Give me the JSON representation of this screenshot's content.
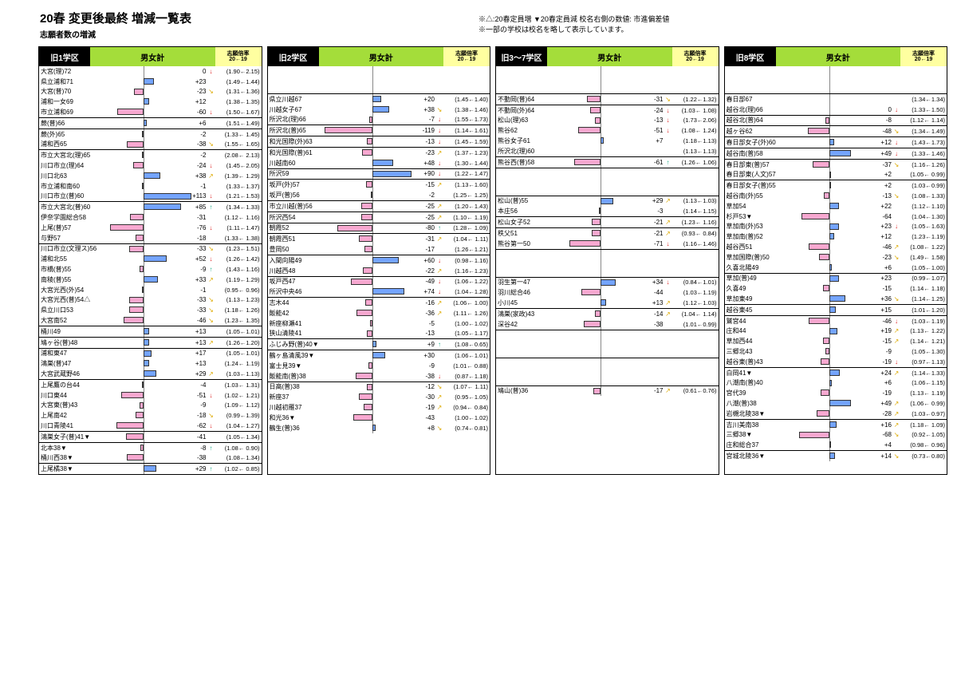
{
  "title": "20春 変更後最終 増減一覧表",
  "subtitle": "志願者数の増減",
  "legend_line1": "※△:20春定員増  ▼20春定員減    校名右側の数値: 市進偏差値",
  "legend_line2": "※一部の学校は校名を略して表示しています。",
  "head": {
    "total": "男女計",
    "ratio": "志願倍率\n20←19"
  },
  "districts": [
    "旧1学区",
    "旧2学区",
    "旧3～7学区",
    "旧8学区"
  ],
  "bar_scale": 0.55,
  "colors": {
    "pos": "#74a4ff",
    "neg": "#f8a8d0",
    "head_black": "#000000",
    "head_green": "#a4dd3a",
    "head_yellow": "#ffffa0"
  },
  "cols": [
    [
      [
        [
          "大宮(理)72",
          0,
          "↓",
          "(1.90←2.15)"
        ],
        [
          "県立浦和71",
          23,
          "",
          "(1.49←1.44)"
        ],
        [
          "大宮(普)70",
          -23,
          "↘",
          "(1.31←1.36)"
        ],
        [
          "浦和一女69",
          12,
          "",
          "(1.38←1.35)"
        ],
        [
          "市立浦和69",
          -60,
          "↓",
          "(1.50←1.67)"
        ]
      ],
      [
        [
          "蕨(普)66",
          6,
          "",
          "(1.51←1.49)"
        ]
      ],
      [
        [
          "蕨(外)65",
          -2,
          "",
          "(1.33← 1.45)"
        ],
        [
          "浦和西65",
          -38,
          "↘",
          "(1.55← 1.65)"
        ]
      ],
      [
        [
          "市立大宮北(理)65",
          -2,
          "",
          "(2.08← 2.13)"
        ],
        [
          "川口市立(理)64",
          -24,
          "↓",
          "(1.45←2.05)"
        ],
        [
          "川口北63",
          38,
          "↗",
          "(1.39← 1.29)"
        ],
        [
          "市立浦和南60",
          -1,
          "",
          "(1.33←1.37)"
        ],
        [
          "川口市立(普)60",
          113,
          "↓",
          "(1.21←1.53)"
        ]
      ],
      [
        [
          "市立大宮北(普)60",
          85,
          "↑",
          "(1.34←1.33)"
        ],
        [
          "伊奈学園総合58",
          -31,
          "",
          "(1.12← 1.16)"
        ],
        [
          "上尾(普)57",
          -76,
          "↓",
          "(1.11←1.47)"
        ],
        [
          "与野57",
          -18,
          "",
          "(1.33← 1.38)"
        ]
      ],
      [
        [
          "川口市立(文理ス)56",
          -33,
          "↘",
          "(1.23←1.51)"
        ],
        [
          "浦和北55",
          52,
          "↓",
          "(1.26←1.42)"
        ],
        [
          "市橋(普)55",
          -9,
          "↑",
          "(1.43←1.16)"
        ],
        [
          "南稜(普)55",
          33,
          "↗",
          "(1.19←1.29)"
        ],
        [
          "大宮光西(外)54",
          -1,
          "",
          "(0.95← 0.96)"
        ],
        [
          "大宮光西(普)54△",
          -33,
          "↘",
          "(1.13←1.23)"
        ],
        [
          "県立川口53",
          -33,
          "↘",
          "(1.18← 1.26)"
        ],
        [
          "大宮南52",
          -46,
          "↘",
          "(1.23← 1.35)"
        ]
      ],
      [
        [
          "桶川49",
          13,
          "",
          "(1.05←1.01)"
        ]
      ],
      [
        [
          "鳩ヶ谷(普)48",
          13,
          "↗",
          "(1.26←1.20)"
        ]
      ],
      [
        [
          "浦和東47",
          17,
          "",
          "(1.05←1.01)"
        ],
        [
          "鴻巣(普)47",
          13,
          "",
          "(1.24← 1.19)"
        ],
        [
          "大宮武蔵野46",
          29,
          "↗",
          "(1.03←1.13)"
        ]
      ],
      [
        [
          "上尾鷹の台44",
          -4,
          "",
          "(1.03← 1.31)"
        ],
        [
          "川口東44",
          -51,
          "↓",
          "(1.02← 1.21)"
        ],
        [
          "大宮東(普)43",
          -9,
          "",
          "(1.09← 1.12)"
        ],
        [
          "上尾南42",
          -18,
          "↘",
          "(0.99←1.39)"
        ],
        [
          "川口青陵41",
          -62,
          "↓",
          "(1.04←1.27)"
        ]
      ],
      [
        [
          "鴻巣女子(普)41▼",
          -41,
          "",
          "(1.05←1.34)"
        ]
      ],
      [
        [
          "北本38▼",
          -8,
          "↑",
          "(1.08← 0.90)"
        ],
        [
          "桶川西38▼",
          -38,
          "",
          "(1.08←1.34)"
        ]
      ],
      [
        [
          "上尾橘38▼",
          29,
          "↑",
          "(1.02← 0.85)"
        ]
      ]
    ],
    [
      [
        [
          "",
          null,
          "",
          ""
        ]
      ],
      [
        [
          "県立川越67",
          20,
          "",
          "(1.45←1.40)"
        ],
        [
          "川越女子67",
          38,
          "↘",
          "(1.38←1.46)"
        ],
        [
          "所沢北(理)66",
          -7,
          "↓",
          "(1.55←1.73)"
        ]
      ],
      [
        [
          "所沢北(普)65",
          -119,
          "↓",
          "(1.14←1.61)"
        ]
      ],
      [
        [
          "和光国際(外)63",
          -13,
          "↓",
          "(1.45←1.59)"
        ]
      ],
      [
        [
          "和光国際(普)61",
          -23,
          "↗",
          "(1.37←1.23)"
        ],
        [
          "川越南60",
          48,
          "↓",
          "(1.30←1.44)"
        ]
      ],
      [
        [
          "所沢59",
          90,
          "↓",
          "(1.22←1.47)"
        ]
      ],
      [
        [
          "坂戸(外)57",
          -15,
          "↗",
          "(1.13←1.60)"
        ],
        [
          "坂戸(普)56",
          -2,
          "",
          "(1.25← 1.25)"
        ]
      ],
      [
        [
          "市立川越(普)56",
          -25,
          "↗",
          "(1.20←1.43)"
        ]
      ],
      [
        [
          "所沢西54",
          -25,
          "↗",
          "(1.10← 1.19)"
        ]
      ],
      [
        [
          "朝霞52",
          -80,
          "↑",
          "(1.28← 1.09)"
        ]
      ],
      [
        [
          "朝霞西51",
          -31,
          "↗",
          "(1.04← 1.11)"
        ],
        [
          "豊岡50",
          -17,
          "",
          "(1.26←1.21)"
        ]
      ],
      [
        [
          "入間向陽49",
          60,
          "↓",
          "(0.98←1.16)"
        ],
        [
          "川越西48",
          -22,
          "↗",
          "(1.16←1.23)"
        ]
      ],
      [
        [
          "坂戸西47",
          -49,
          "↓",
          "(1.06←1.22)"
        ],
        [
          "所沢中央46",
          74,
          "↓",
          "(1.04←1.28)"
        ]
      ],
      [
        [
          "志木44",
          -16,
          "↗",
          "(1.06← 1.00)"
        ],
        [
          "飯能42",
          -36,
          "↗",
          "(1.11← 1.26)"
        ],
        [
          "新座柳瀬41",
          -5,
          "",
          "(1.00←1.02)"
        ],
        [
          "狭山清陵41",
          -13,
          "",
          "(1.05←1.17)"
        ]
      ],
      [
        [
          "ふじみ野(普)40▼",
          9,
          "↑",
          "(1.08←0.65)"
        ]
      ],
      [
        [
          "鶴ヶ島清風39▼",
          30,
          "",
          "(1.06←1.01)"
        ],
        [
          "富士見39▼",
          -9,
          "",
          "(1.01← 0.88)"
        ],
        [
          "飯能南(普)38",
          -38,
          "↓",
          "(0.87←1.18)"
        ]
      ],
      [
        [
          "日高(普)38",
          -12,
          "↘",
          "(1.07← 1.11)"
        ],
        [
          "新座37",
          -30,
          "↗",
          "(0.95←1.05)"
        ],
        [
          "川越初雁37",
          -19,
          "↗",
          "(0.94← 0.84)"
        ],
        [
          "和光36▼",
          -43,
          "",
          "(1.00←1.02)"
        ],
        [
          "鶴生(普)36",
          8,
          "↘",
          "(0.74←0.81)"
        ]
      ]
    ],
    [
      [
        [
          "",
          null,
          "",
          ""
        ]
      ],
      [
        [
          "不動岡(普)64",
          -31,
          "↘",
          "(1.22←1.32)"
        ]
      ],
      [
        [
          "不動岡(外)64",
          -24,
          "↓",
          "(1.03← 1.08)"
        ],
        [
          "松山(理)63",
          -13,
          "↓",
          "(1.73←2.06)"
        ],
        [
          "熊谷62",
          -51,
          "↓",
          "(1.08← 1.24)"
        ],
        [
          "熊谷女子61",
          7,
          "",
          "(1.18←1.13)"
        ],
        [
          "所沢北(理)60",
          null,
          "",
          "(1.13←1.13)"
        ]
      ],
      [
        [
          "熊谷西(普)58",
          -61,
          "↑",
          "(1.26← 1.06)"
        ]
      ],
      [
        [
          "",
          null,
          "",
          ""
        ]
      ],
      [
        [
          "松山(普)55",
          29,
          "↗",
          "(1.13←1.03)"
        ],
        [
          "本庄56",
          -3,
          "",
          "(1.14←1.15)"
        ]
      ],
      [
        [
          "松山女子52",
          -21,
          "↗",
          "(1.23← 1.16)"
        ]
      ],
      [
        [
          "秩父51",
          -21,
          "↗",
          "(0.93← 0.84)"
        ],
        [
          "熊谷第一50",
          -71,
          "↓",
          "(1.16←1.46)"
        ]
      ],
      [
        [
          "",
          null,
          "",
          ""
        ]
      ],
      [
        [
          "羽生第一47",
          34,
          "↓",
          "(0.84←1.01)"
        ],
        [
          "羽川総合46",
          -44,
          "",
          "(1.03←1.19)"
        ],
        [
          "小川45",
          13,
          "↗",
          "(1.12←1.03)"
        ]
      ],
      [
        [
          "鴻巣(家政)43",
          -14,
          "↗",
          "(1.04← 1.14)"
        ],
        [
          "深谷42",
          -38,
          "",
          "(1.01←0.99)"
        ]
      ],
      [
        [
          "",
          null,
          "",
          ""
        ]
      ],
      [
        [
          "",
          null,
          "",
          ""
        ]
      ],
      [
        [
          "鳩山(普)36",
          -17,
          "↗",
          "(0.61←0.76)"
        ]
      ]
    ],
    [
      [
        [
          "",
          null,
          "",
          ""
        ]
      ],
      [
        [
          "春日部67",
          null,
          "",
          "(1.34←1.34)"
        ],
        [
          "越谷北(理)66",
          0,
          "↓",
          "(1.33←1.50)"
        ]
      ],
      [
        [
          "越谷北(普)64",
          -8,
          "",
          "(1.12← 1.14)"
        ]
      ],
      [
        [
          "越ヶ谷62",
          -48,
          "↘",
          "(1.34←1.49)"
        ]
      ],
      [
        [
          "春日部女子(外)60",
          12,
          "↓",
          "(1.43←1.73)"
        ]
      ],
      [
        [
          "越谷南(普)58",
          49,
          "↓",
          "(1.33←1.46)"
        ]
      ],
      [
        [
          "春日部東(普)57",
          -37,
          "↘",
          "(1.16←1.26)"
        ],
        [
          "春日部東(人文)57",
          2,
          "",
          "(1.05← 0.99)"
        ]
      ],
      [
        [
          "春日部女子(普)55",
          2,
          "",
          "(1.03←0.99)"
        ],
        [
          "越谷南(外)55",
          -13,
          "↘",
          "(1.08←1.33)"
        ],
        [
          "草加54",
          22,
          "",
          "(1.12←1.10)"
        ],
        [
          "杉戸53▼",
          -64,
          "",
          "(1.04←1.30)"
        ],
        [
          "草加南(外)53",
          23,
          "↓",
          "(1.05←1.63)"
        ],
        [
          "草加南(普)52",
          12,
          "",
          "(1.23←1.19)"
        ],
        [
          "越谷西51",
          -46,
          "↗",
          "(1.08← 1.22)"
        ],
        [
          "草加国際(普)50",
          -23,
          "↘",
          "(1.49← 1.58)"
        ],
        [
          "久喜北陽49",
          6,
          "",
          "(1.05←1.00)"
        ]
      ],
      [
        [
          "草加(普)49",
          23,
          "",
          "(0.99←1.07)"
        ],
        [
          "久喜49",
          -15,
          "",
          "(1.14← 1.18)"
        ],
        [
          "草加東49",
          36,
          "↘",
          "(1.14←1.25)"
        ]
      ],
      [
        [
          "越谷東45",
          15,
          "",
          "(1.01←1.20)"
        ]
      ],
      [
        [
          "鷲宮44",
          -46,
          "↓",
          "(1.03←1.19)"
        ],
        [
          "庄和44",
          19,
          "↗",
          "(1.13← 1.22)"
        ],
        [
          "草加西44",
          -15,
          "↗",
          "(1.14← 1.21)"
        ],
        [
          "三郷北43",
          -9,
          "",
          "(1.05←1.30)"
        ],
        [
          "越谷東(普)43",
          -19,
          "↓",
          "(0.97←1.13)"
        ]
      ],
      [
        [
          "白岡41▼",
          24,
          "↗",
          "(1.14←1.33)"
        ],
        [
          "八潮南(普)40",
          6,
          "",
          "(1.06←1.15)"
        ],
        [
          "宮代39",
          -19,
          "",
          "(1.13← 1.19)"
        ],
        [
          "八潮(普)38",
          49,
          "↗",
          "(1.06← 0.99)"
        ],
        [
          "岩槻北陵38▼",
          -28,
          "↗",
          "(1.03←0.97)"
        ]
      ],
      [
        [
          "吉川美南38",
          16,
          "↗",
          "(1.18← 1.09)"
        ],
        [
          "三郷38▼",
          -68,
          "↘",
          "(0.92←1.05)"
        ],
        [
          "庄和総合37",
          4,
          "",
          "(0.98← 0.96)"
        ]
      ],
      [
        [
          "宮城北陵36▼",
          14,
          "↘",
          "(0.73←0.80)"
        ]
      ]
    ]
  ]
}
